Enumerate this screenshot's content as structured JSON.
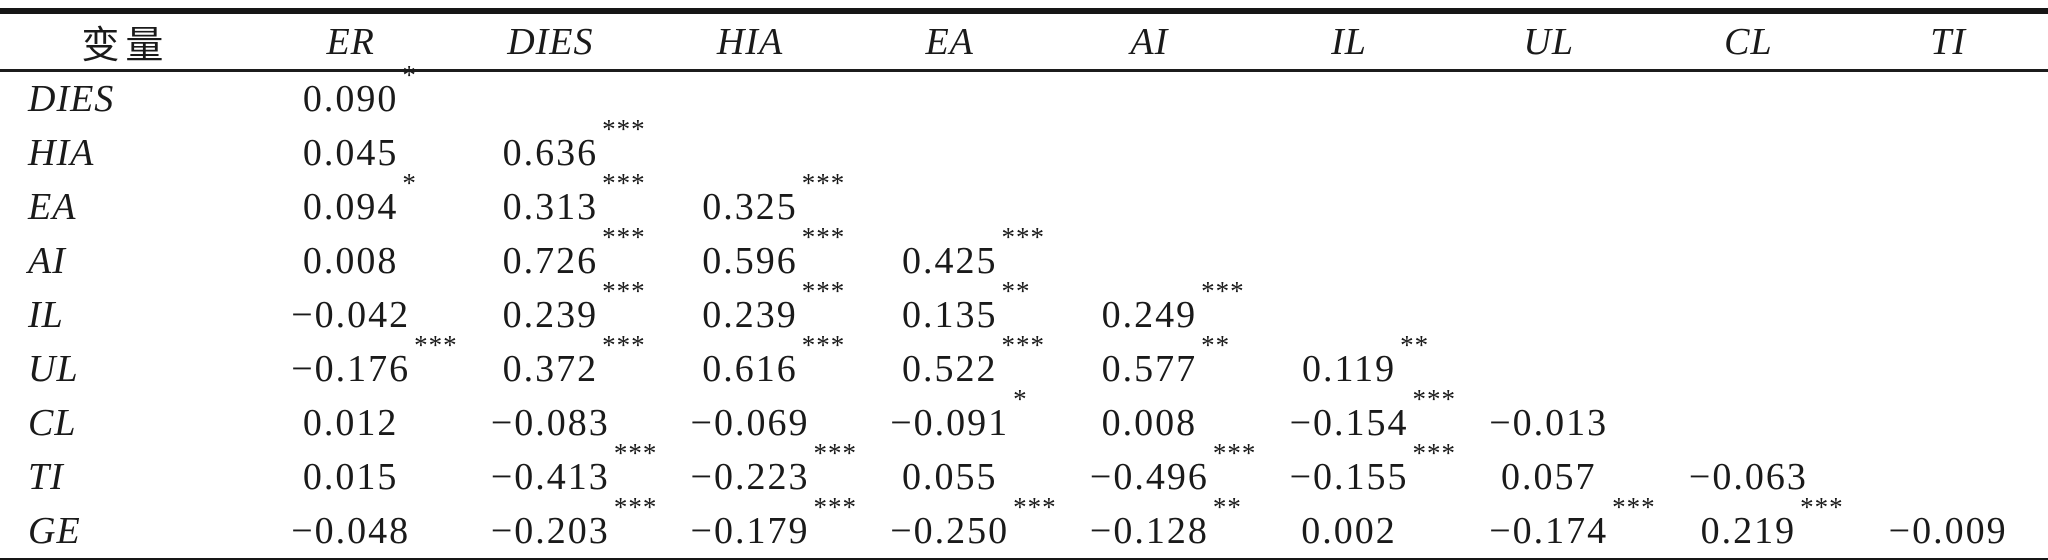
{
  "colors": {
    "text": "#1a1a1a",
    "rule": "#161616",
    "background": "#ffffff"
  },
  "table": {
    "headers": [
      "变量",
      "ER",
      "DIES",
      "HIA",
      "EA",
      "AI",
      "IL",
      "UL",
      "CL",
      "TI"
    ],
    "rows": [
      {
        "label": "DIES",
        "cells": [
          {
            "v": "0.090",
            "s": "*"
          },
          null,
          null,
          null,
          null,
          null,
          null,
          null,
          null
        ]
      },
      {
        "label": "HIA",
        "cells": [
          {
            "v": "0.045"
          },
          {
            "v": "0.636",
            "s": "***"
          },
          null,
          null,
          null,
          null,
          null,
          null,
          null
        ]
      },
      {
        "label": "EA",
        "cells": [
          {
            "v": "0.094",
            "s": "*"
          },
          {
            "v": "0.313",
            "s": "***"
          },
          {
            "v": "0.325",
            "s": "***"
          },
          null,
          null,
          null,
          null,
          null,
          null
        ]
      },
      {
        "label": "AI",
        "cells": [
          {
            "v": "0.008"
          },
          {
            "v": "0.726",
            "s": "***"
          },
          {
            "v": "0.596",
            "s": "***"
          },
          {
            "v": "0.425",
            "s": "***"
          },
          null,
          null,
          null,
          null,
          null
        ]
      },
      {
        "label": "IL",
        "cells": [
          {
            "v": "−0.042"
          },
          {
            "v": "0.239",
            "s": "***"
          },
          {
            "v": "0.239",
            "s": "***"
          },
          {
            "v": "0.135",
            "s": "**"
          },
          {
            "v": "0.249",
            "s": "***"
          },
          null,
          null,
          null,
          null
        ]
      },
      {
        "label": "UL",
        "cells": [
          {
            "v": "−0.176",
            "s": "***"
          },
          {
            "v": "0.372",
            "s": "***"
          },
          {
            "v": "0.616",
            "s": "***"
          },
          {
            "v": "0.522",
            "s": "***"
          },
          {
            "v": "0.577",
            "s": "**"
          },
          {
            "v": "0.119",
            "s": "**"
          },
          null,
          null,
          null
        ]
      },
      {
        "label": "CL",
        "cells": [
          {
            "v": "0.012"
          },
          {
            "v": "−0.083"
          },
          {
            "v": "−0.069"
          },
          {
            "v": "−0.091",
            "s": "*"
          },
          {
            "v": "0.008"
          },
          {
            "v": "−0.154",
            "s": "***"
          },
          {
            "v": "−0.013"
          },
          null,
          null
        ]
      },
      {
        "label": "TI",
        "cells": [
          {
            "v": "0.015"
          },
          {
            "v": "−0.413",
            "s": "***"
          },
          {
            "v": "−0.223",
            "s": "***"
          },
          {
            "v": "0.055"
          },
          {
            "v": "−0.496",
            "s": "***"
          },
          {
            "v": "−0.155",
            "s": "***"
          },
          {
            "v": "0.057"
          },
          {
            "v": "−0.063"
          },
          null
        ]
      },
      {
        "label": "GE",
        "cells": [
          {
            "v": "−0.048"
          },
          {
            "v": "−0.203",
            "s": "***"
          },
          {
            "v": "−0.179",
            "s": "***"
          },
          {
            "v": "−0.250",
            "s": "***"
          },
          {
            "v": "−0.128",
            "s": "**"
          },
          {
            "v": "0.002"
          },
          {
            "v": "−0.174",
            "s": "***"
          },
          {
            "v": "0.219",
            "s": "***"
          },
          {
            "v": "−0.009"
          }
        ]
      }
    ]
  }
}
